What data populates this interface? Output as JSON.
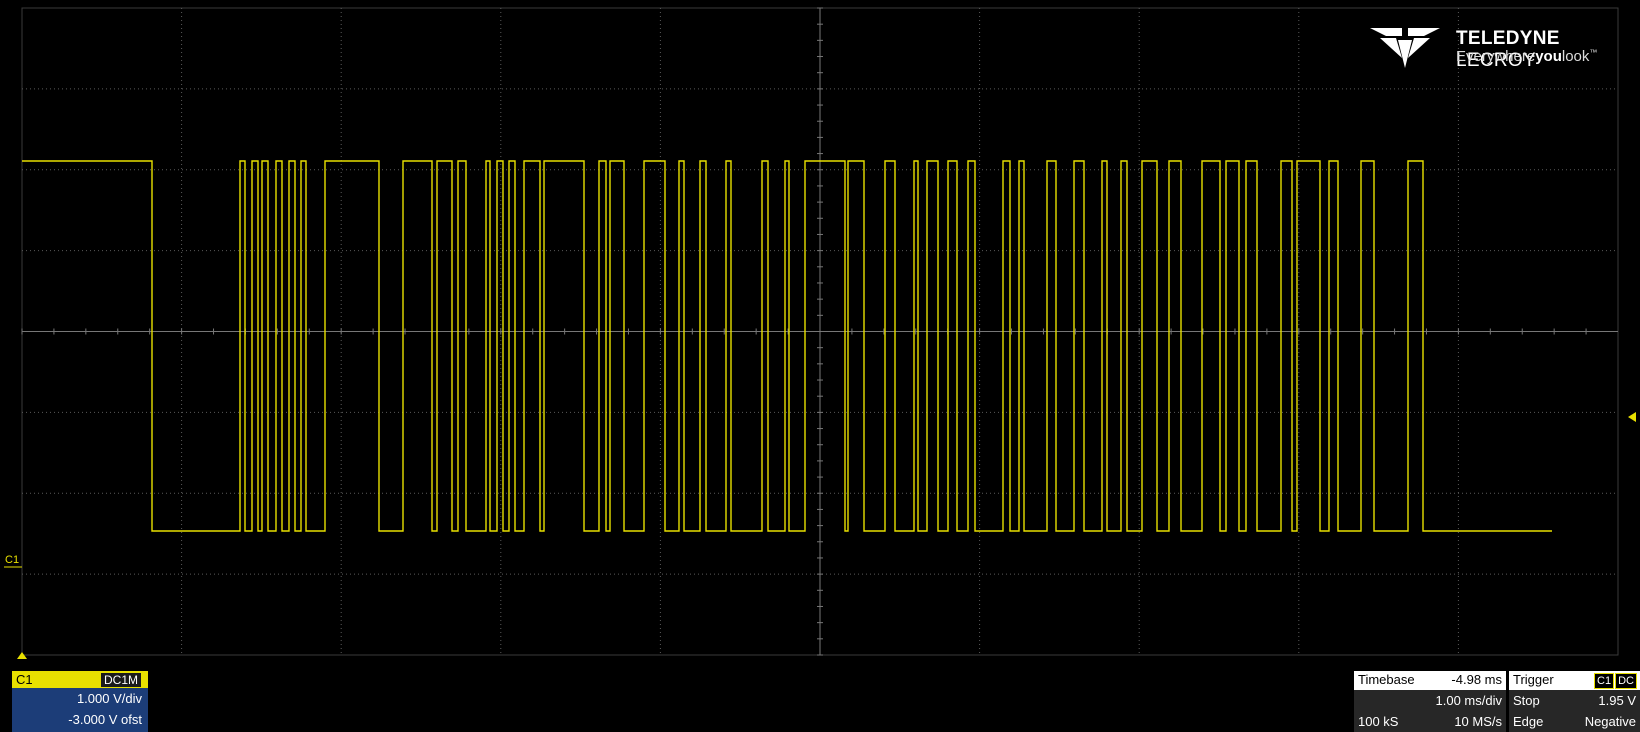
{
  "brand": {
    "name_bold": "TELEDYNE",
    "name_rest": " LECROY",
    "tagline_pre": "Everywhere",
    "tagline_bold": "you",
    "tagline_post": "look",
    "tm": "™"
  },
  "channel": {
    "marker": "C1",
    "label": "C1",
    "coupling": "DC1M",
    "vdiv": "1.000 V/div",
    "offset": "-3.000 V ofst",
    "color": "#e8e000"
  },
  "timebase": {
    "label": "Timebase",
    "value": "-4.98 ms",
    "tdiv": "1.00 ms/div",
    "samples": "100 kS",
    "rate": "10 MS/s"
  },
  "trigger": {
    "label": "Trigger",
    "source": "C1",
    "coupling": "DC",
    "mode": "Stop",
    "level": "1.95 V",
    "type": "Edge",
    "slope": "Negative"
  },
  "colors": {
    "trace": "#e8e000",
    "grid": "#5a5a5a",
    "background": "#000000",
    "channel_panel": "#1c3d78",
    "timebase_panel": "#272727"
  }
}
